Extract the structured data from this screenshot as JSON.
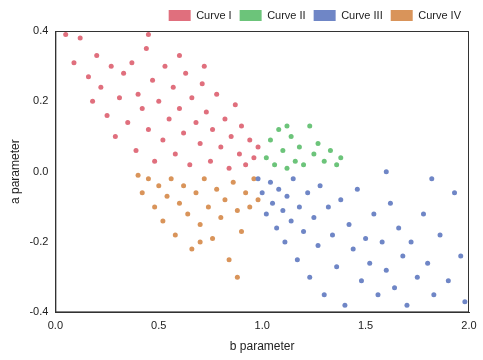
{
  "chart_data": {
    "type": "scatter",
    "x_label": "b parameter",
    "y_label": "a parameter",
    "xlim": [
      0,
      2
    ],
    "xticks": [
      {
        "value": 0,
        "label": "0.0"
      },
      0.5,
      {
        "value": 1,
        "label": "1.0"
      },
      1.5,
      {
        "value": 2,
        "label": "2.0"
      }
    ],
    "ylim": [
      -0.4,
      0.4
    ],
    "yticks": [
      -0.4,
      -0.2,
      {
        "value": 0,
        "label": "0.0"
      },
      0.2,
      0.4
    ],
    "grid": false,
    "legend": "upper right",
    "marker": "circle",
    "series": [
      {
        "name": "Curve I",
        "color": "#e06f7d",
        "values": [
          [
            0.05,
            0.39
          ],
          [
            0.09,
            0.31
          ],
          [
            0.12,
            0.38
          ],
          [
            0.16,
            0.27
          ],
          [
            0.18,
            0.2
          ],
          [
            0.2,
            0.33
          ],
          [
            0.22,
            0.24
          ],
          [
            0.25,
            0.16
          ],
          [
            0.27,
            0.3
          ],
          [
            0.29,
            0.1
          ],
          [
            0.31,
            0.21
          ],
          [
            0.33,
            0.28
          ],
          [
            0.35,
            0.14
          ],
          [
            0.37,
            0.31
          ],
          [
            0.39,
            0.06
          ],
          [
            0.4,
            0.22
          ],
          [
            0.42,
            0.18
          ],
          [
            0.44,
            0.35
          ],
          [
            0.45,
            0.12
          ],
          [
            0.47,
            0.26
          ],
          [
            0.48,
            0.03
          ],
          [
            0.5,
            0.2
          ],
          [
            0.52,
            0.09
          ],
          [
            0.53,
            0.3
          ],
          [
            0.55,
            0.15
          ],
          [
            0.57,
            0.24
          ],
          [
            0.58,
            0.05
          ],
          [
            0.6,
            0.18
          ],
          [
            0.62,
            0.11
          ],
          [
            0.63,
            0.28
          ],
          [
            0.65,
            0.02
          ],
          [
            0.66,
            0.21
          ],
          [
            0.68,
            0.14
          ],
          [
            0.7,
            0.08
          ],
          [
            0.71,
            0.25
          ],
          [
            0.73,
            0.17
          ],
          [
            0.75,
            0.03
          ],
          [
            0.76,
            0.12
          ],
          [
            0.78,
            0.22
          ],
          [
            0.8,
            0.07
          ],
          [
            0.82,
            0.15
          ],
          [
            0.84,
            0.01
          ],
          [
            0.85,
            0.1
          ],
          [
            0.87,
            0.19
          ],
          [
            0.89,
            0.05
          ],
          [
            0.9,
            0.13
          ],
          [
            0.92,
            0.02
          ],
          [
            0.94,
            0.09
          ],
          [
            0.96,
            0.04
          ],
          [
            0.98,
            0.07
          ],
          [
            0.6,
            0.33
          ],
          [
            0.72,
            0.3
          ],
          [
            0.45,
            0.39
          ]
        ]
      },
      {
        "name": "Curve II",
        "color": "#6cc47a",
        "values": [
          [
            1.02,
            0.04
          ],
          [
            1.04,
            0.09
          ],
          [
            1.06,
            0.02
          ],
          [
            1.08,
            0.12
          ],
          [
            1.1,
            0.06
          ],
          [
            1.12,
            0.01
          ],
          [
            1.14,
            0.1
          ],
          [
            1.16,
            0.03
          ],
          [
            1.18,
            0.07
          ],
          [
            1.2,
            0.02
          ],
          [
            1.23,
            0.13
          ],
          [
            1.25,
            0.05
          ],
          [
            1.27,
            0.08
          ],
          [
            1.3,
            0.03
          ],
          [
            1.33,
            0.06
          ],
          [
            1.36,
            0.02
          ],
          [
            1.38,
            0.04
          ],
          [
            1.12,
            0.13
          ]
        ]
      },
      {
        "name": "Curve III",
        "color": "#6f86c6",
        "values": [
          [
            0.98,
            -0.02
          ],
          [
            1.0,
            -0.06
          ],
          [
            1.02,
            -0.12
          ],
          [
            1.04,
            -0.03
          ],
          [
            1.05,
            -0.09
          ],
          [
            1.07,
            -0.16
          ],
          [
            1.08,
            -0.05
          ],
          [
            1.1,
            -0.11
          ],
          [
            1.11,
            -0.2
          ],
          [
            1.12,
            -0.07
          ],
          [
            1.14,
            -0.14
          ],
          [
            1.15,
            -0.02
          ],
          [
            1.17,
            -0.25
          ],
          [
            1.18,
            -0.1
          ],
          [
            1.2,
            -0.17
          ],
          [
            1.22,
            -0.06
          ],
          [
            1.23,
            -0.3
          ],
          [
            1.25,
            -0.13
          ],
          [
            1.27,
            -0.21
          ],
          [
            1.28,
            -0.04
          ],
          [
            1.3,
            -0.35
          ],
          [
            1.32,
            -0.1
          ],
          [
            1.34,
            -0.18
          ],
          [
            1.36,
            -0.27
          ],
          [
            1.38,
            -0.08
          ],
          [
            1.4,
            -0.38
          ],
          [
            1.42,
            -0.15
          ],
          [
            1.44,
            -0.22
          ],
          [
            1.46,
            -0.05
          ],
          [
            1.48,
            -0.31
          ],
          [
            1.5,
            -0.19
          ],
          [
            1.52,
            -0.26
          ],
          [
            1.54,
            -0.12
          ],
          [
            1.56,
            -0.35
          ],
          [
            1.58,
            -0.2
          ],
          [
            1.6,
            -0.28
          ],
          [
            1.62,
            -0.09
          ],
          [
            1.64,
            -0.33
          ],
          [
            1.66,
            -0.16
          ],
          [
            1.68,
            -0.24
          ],
          [
            1.7,
            -0.38
          ],
          [
            1.72,
            -0.2
          ],
          [
            1.75,
            -0.3
          ],
          [
            1.78,
            -0.12
          ],
          [
            1.8,
            -0.26
          ],
          [
            1.83,
            -0.35
          ],
          [
            1.86,
            -0.18
          ],
          [
            1.9,
            -0.31
          ],
          [
            1.93,
            -0.06
          ],
          [
            1.96,
            -0.24
          ],
          [
            1.98,
            -0.37
          ],
          [
            1.6,
            0.0
          ],
          [
            1.82,
            -0.02
          ]
        ]
      },
      {
        "name": "Curve IV",
        "color": "#d9945a",
        "values": [
          [
            0.4,
            -0.01
          ],
          [
            0.42,
            -0.06
          ],
          [
            0.45,
            -0.02
          ],
          [
            0.48,
            -0.1
          ],
          [
            0.5,
            -0.04
          ],
          [
            0.52,
            -0.14
          ],
          [
            0.54,
            -0.07
          ],
          [
            0.56,
            -0.02
          ],
          [
            0.58,
            -0.18
          ],
          [
            0.6,
            -0.09
          ],
          [
            0.62,
            -0.04
          ],
          [
            0.64,
            -0.12
          ],
          [
            0.66,
            -0.22
          ],
          [
            0.68,
            -0.06
          ],
          [
            0.7,
            -0.15
          ],
          [
            0.72,
            -0.02
          ],
          [
            0.74,
            -0.1
          ],
          [
            0.76,
            -0.19
          ],
          [
            0.78,
            -0.05
          ],
          [
            0.8,
            -0.13
          ],
          [
            0.82,
            -0.08
          ],
          [
            0.84,
            -0.25
          ],
          [
            0.86,
            -0.03
          ],
          [
            0.88,
            -0.11
          ],
          [
            0.9,
            -0.17
          ],
          [
            0.92,
            -0.06
          ],
          [
            0.94,
            -0.1
          ],
          [
            0.96,
            -0.02
          ],
          [
            0.98,
            -0.08
          ],
          [
            0.88,
            -0.3
          ],
          [
            0.7,
            -0.2
          ]
        ]
      }
    ]
  }
}
